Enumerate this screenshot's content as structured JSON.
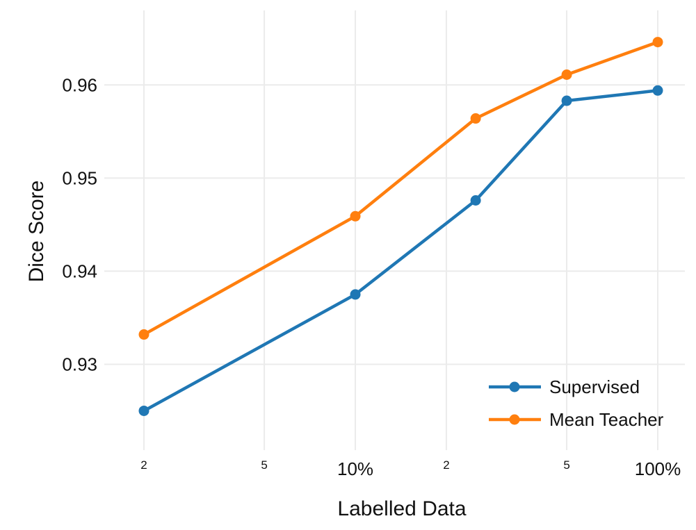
{
  "chart_data": {
    "type": "line",
    "xscale": "log",
    "xlabel": "Labelled Data",
    "ylabel": "Dice Score",
    "xlim": [
      0.02,
      1.0
    ],
    "ylim": [
      0.9225,
      0.968
    ],
    "x": [
      0.02,
      0.1,
      0.25,
      0.5,
      1.0
    ],
    "series": [
      {
        "name": "Supervised",
        "color": "#1f77b4",
        "values": [
          0.925,
          0.9375,
          0.9476,
          0.9583,
          0.9594
        ]
      },
      {
        "name": "Mean Teacher",
        "color": "#ff7f0e",
        "values": [
          0.9332,
          0.9459,
          0.9564,
          0.9611,
          0.9646
        ]
      }
    ],
    "x_ticks": [
      {
        "value": 0.02,
        "label": "2",
        "major": false
      },
      {
        "value": 0.05,
        "label": "5",
        "major": false
      },
      {
        "value": 0.1,
        "label": "10%",
        "major": true
      },
      {
        "value": 0.2,
        "label": "2",
        "major": false
      },
      {
        "value": 0.5,
        "label": "5",
        "major": false
      },
      {
        "value": 1.0,
        "label": "100%",
        "major": true
      }
    ],
    "y_ticks": [
      {
        "value": 0.93,
        "label": "0.93"
      },
      {
        "value": 0.94,
        "label": "0.94"
      },
      {
        "value": 0.95,
        "label": "0.95"
      },
      {
        "value": 0.96,
        "label": "0.96"
      }
    ],
    "grid": true,
    "legend_position": "bottom-right"
  }
}
